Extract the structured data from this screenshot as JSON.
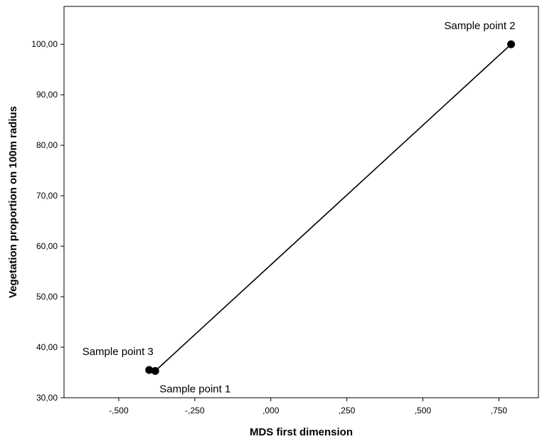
{
  "chart_data": {
    "type": "line",
    "title": "",
    "xlabel": "MDS first dimension",
    "ylabel": "Vegetation proportion on 100m radius",
    "xlim": [
      -0.68,
      0.88
    ],
    "ylim": [
      30,
      107.5
    ],
    "x_ticks": [
      -0.5,
      -0.25,
      0,
      0.25,
      0.5,
      0.75
    ],
    "x_tick_labels": [
      "-,500",
      "-,250",
      ",000",
      ",250",
      ",500",
      ",750"
    ],
    "y_ticks": [
      30,
      40,
      50,
      60,
      70,
      80,
      90,
      100
    ],
    "y_tick_labels": [
      "30,00",
      "40,00",
      "50,00",
      "60,00",
      "70,00",
      "80,00",
      "90,00",
      "100,00"
    ],
    "grid": false,
    "legend": "none",
    "line_color": "#000000",
    "points": [
      {
        "label": "Sample point 3",
        "x": -0.4,
        "y": 35.5,
        "label_pos": "above-left"
      },
      {
        "label": "Sample point 1",
        "x": -0.38,
        "y": 35.3,
        "label_pos": "below-right"
      },
      {
        "label": "Sample point 2",
        "x": 0.79,
        "y": 100.0,
        "label_pos": "above-left"
      }
    ],
    "line_order": [
      0,
      1,
      2
    ]
  }
}
